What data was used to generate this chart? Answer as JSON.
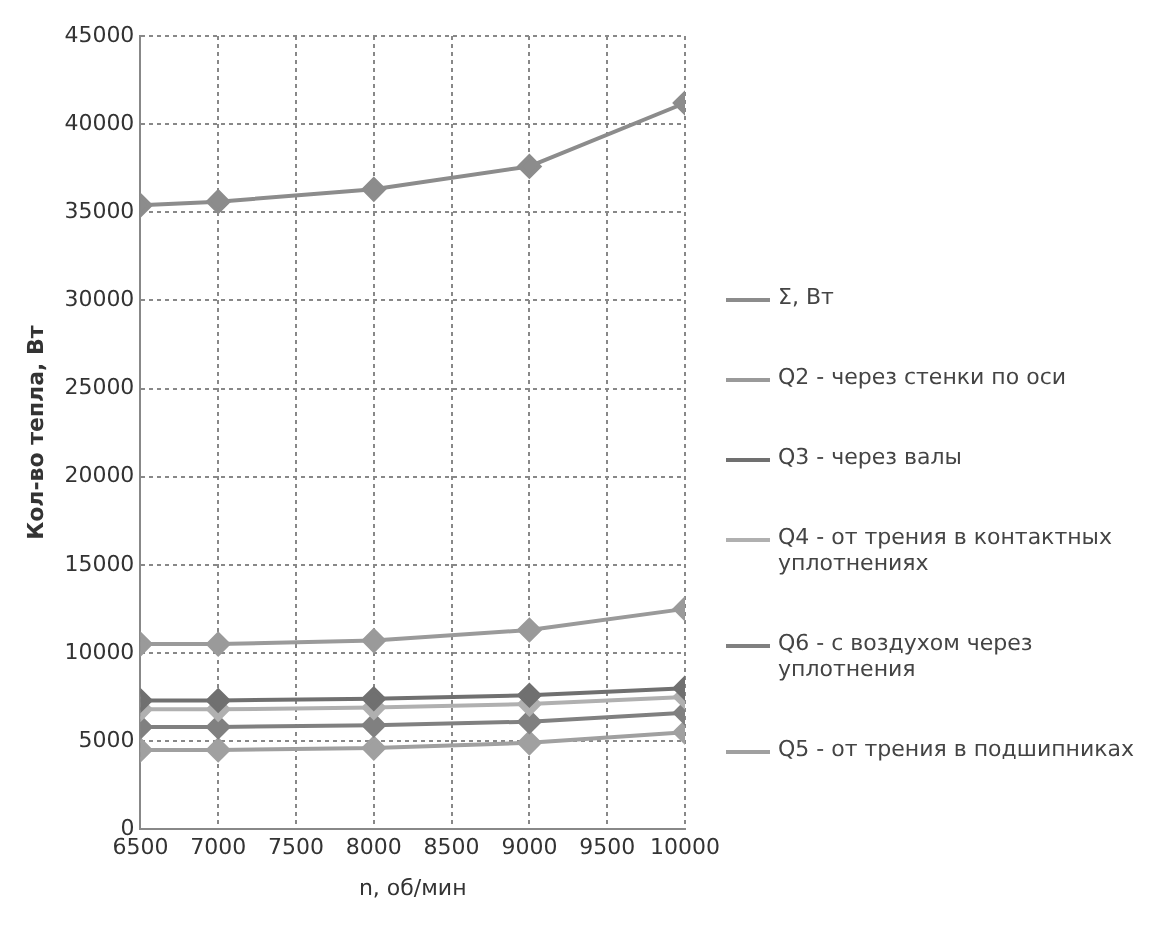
{
  "chart_data": {
    "type": "line",
    "xlabel": "n, об/мин",
    "ylabel": "Кол-во тепла, Вт",
    "x": [
      6500,
      7000,
      8000,
      9000,
      10000
    ],
    "series": [
      {
        "name": "Σ, Вт",
        "color": "#8c8c8c",
        "values": [
          35400,
          35600,
          36300,
          37600,
          41200
        ]
      },
      {
        "name": "Q2 - через стенки по оси",
        "color": "#9a9a9a",
        "values": [
          10500,
          10500,
          10700,
          11300,
          12500
        ]
      },
      {
        "name": "Q3 - через валы",
        "color": "#707070",
        "values": [
          7300,
          7300,
          7400,
          7600,
          8000
        ]
      },
      {
        "name": "Q4 - от трения в контактных уплотнениях",
        "color": "#b0b0b0",
        "values": [
          6800,
          6800,
          6900,
          7100,
          7500
        ]
      },
      {
        "name": "Q6 - с воздухом через уплотнения",
        "color": "#808080",
        "values": [
          5800,
          5800,
          5900,
          6100,
          6600
        ]
      },
      {
        "name": "Q5 - от трения в подшипниках",
        "color": "#a0a0a0",
        "values": [
          4500,
          4500,
          4600,
          4900,
          5500
        ]
      }
    ],
    "xlim": [
      6500,
      10000
    ],
    "xticks": [
      6500,
      7000,
      7500,
      8000,
      8500,
      9000,
      9500,
      10000
    ],
    "ylim": [
      0,
      45000
    ],
    "yticks": [
      0,
      5000,
      10000,
      15000,
      20000,
      25000,
      30000,
      35000,
      40000,
      45000
    ],
    "grid": true,
    "legend": "right",
    "marker": "diamond",
    "line_style": "solid"
  }
}
